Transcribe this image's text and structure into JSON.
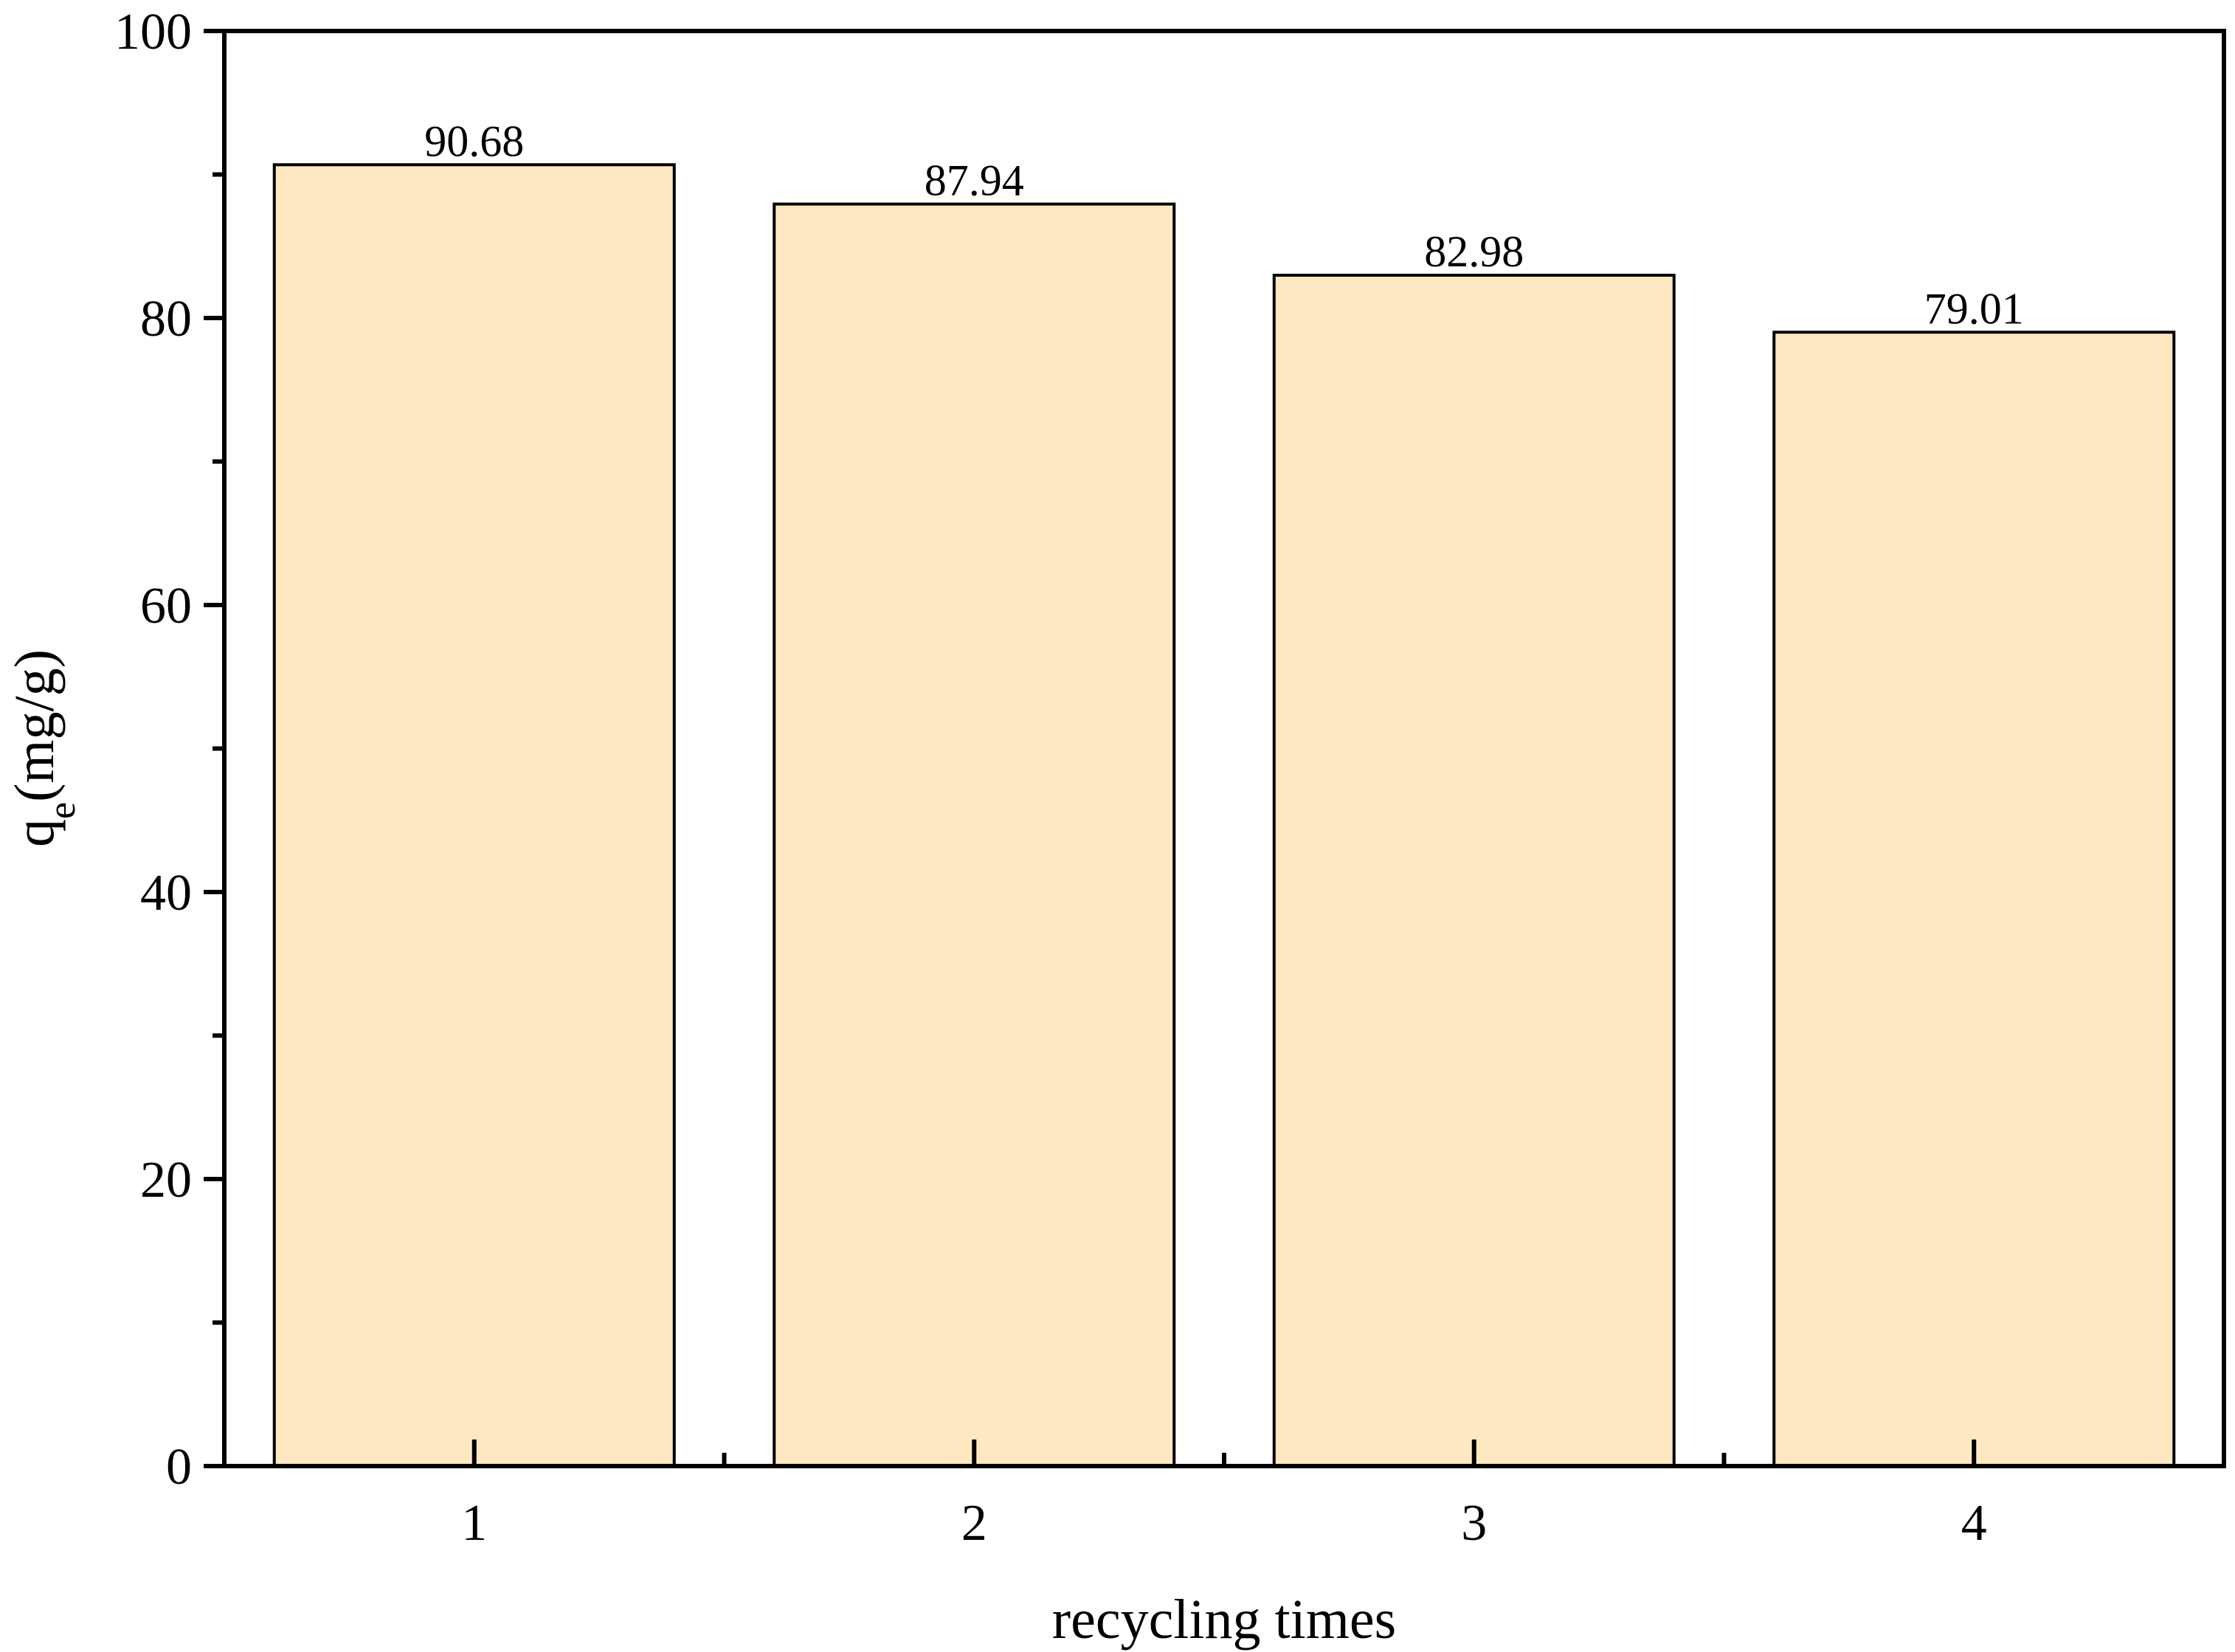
{
  "chart_data": {
    "type": "bar",
    "categories": [
      "1",
      "2",
      "3",
      "4"
    ],
    "values": [
      90.68,
      87.94,
      82.98,
      79.01
    ],
    "value_labels": [
      "90.68",
      "87.94",
      "82.98",
      "79.01"
    ],
    "title": "",
    "xlabel": "recycling times",
    "ylabel_main": "q",
    "ylabel_subscript": "e",
    "ylabel_unit": "(mg/g)",
    "ylim": [
      0,
      100
    ],
    "yticks": [
      0,
      20,
      40,
      60,
      80,
      100
    ],
    "yticks_minor": [
      10,
      30,
      50,
      70,
      90
    ],
    "grid": false,
    "legend": "none",
    "bar_fill": "#FDE8C2",
    "bar_stroke": "#000000"
  }
}
